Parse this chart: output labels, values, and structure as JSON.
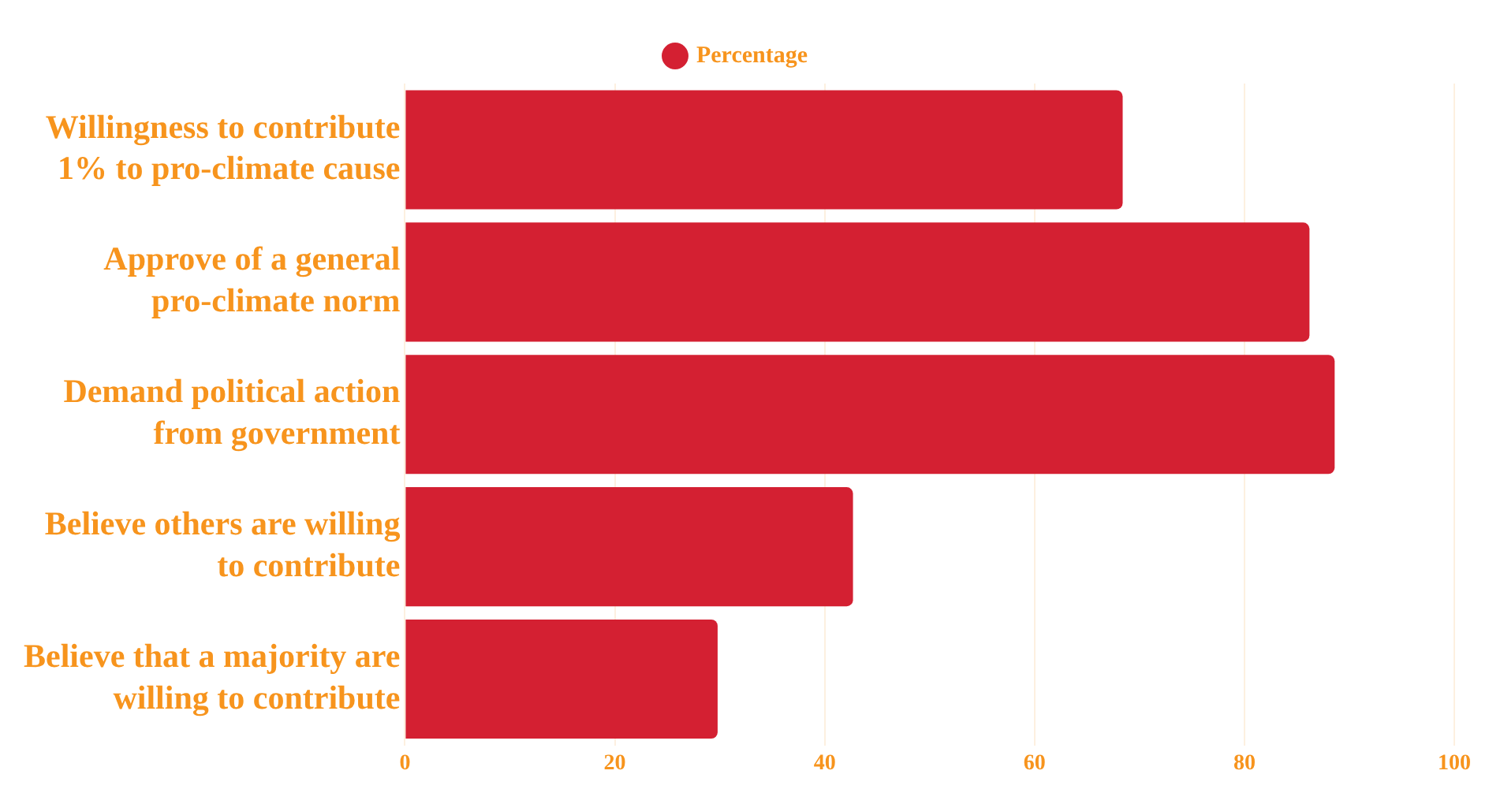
{
  "chart_data": {
    "type": "bar",
    "orientation": "horizontal",
    "categories": [
      "Willingness to contribute 1% to pro-climate cause",
      "Approve of a general pro-climate norm",
      "Demand political action from government",
      "Believe others are willing to contribute",
      "Believe that a majority are willing to contribute"
    ],
    "series": [
      {
        "name": "Percentage",
        "color": "#d42032",
        "values": [
          68.4,
          86.2,
          88.6,
          42.7,
          29.8
        ]
      }
    ],
    "xlim": [
      0,
      100
    ],
    "xticks": [
      0,
      20,
      40,
      60,
      80,
      100
    ],
    "grid": "x",
    "legend": "top",
    "marker": "circle"
  }
}
